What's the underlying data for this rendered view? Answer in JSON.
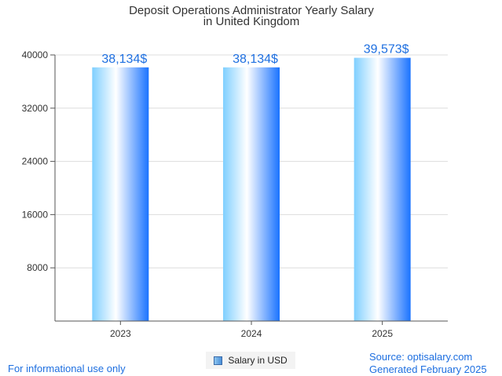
{
  "chart_data": {
    "type": "bar",
    "title_lines": [
      "Deposit Operations Administrator Yearly Salary",
      "in United Kingdom"
    ],
    "categories": [
      "2023",
      "2024",
      "2025"
    ],
    "values": [
      38134,
      38134,
      39573
    ],
    "data_labels": [
      "38,134$",
      "38,134$",
      "39,573$"
    ],
    "ylim": [
      0,
      40000
    ],
    "yticks": [
      "8000",
      "16000",
      "24000",
      "32000",
      "40000"
    ],
    "grid": true,
    "legend": {
      "position": "bottom",
      "label": "Salary in USD"
    },
    "colors": {
      "bar_edge": "#1a73ff",
      "bar_light": "#ffffff",
      "bar_sky": "#7fcfff",
      "label": "#1e6fe0"
    }
  },
  "footer": {
    "disclaimer": "For informational use only",
    "source": "Source: optisalary.com",
    "generated": "Generated February 2025"
  }
}
